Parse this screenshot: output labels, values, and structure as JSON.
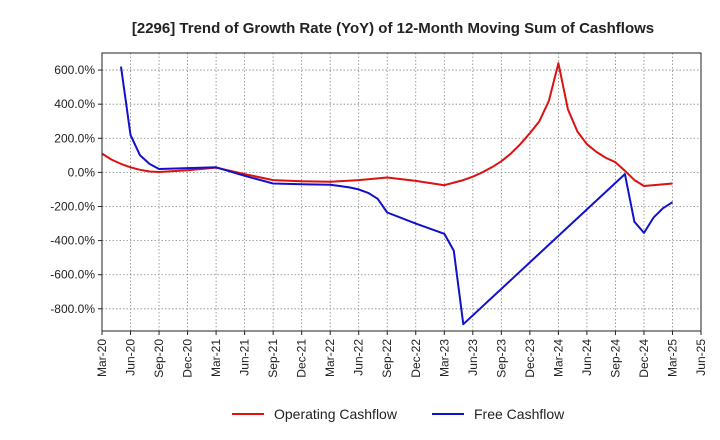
{
  "chart_data": {
    "type": "line",
    "title": "[2296]  Trend of Growth Rate (YoY) of 12-Month Moving Sum of Cashflows",
    "xlabel": "",
    "ylabel": "",
    "ylim": [
      -930,
      700
    ],
    "y_ticks": [
      600,
      400,
      200,
      0,
      -200,
      -400,
      -600,
      -800
    ],
    "y_tick_labels": [
      "600.0%",
      "400.0%",
      "200.0%",
      "0.0%",
      "-200.0%",
      "-400.0%",
      "-600.0%",
      "-800.0%"
    ],
    "x_tick_labels": [
      "Mar-20",
      "Jun-20",
      "Sep-20",
      "Dec-20",
      "Mar-21",
      "Jun-21",
      "Sep-21",
      "Dec-21",
      "Mar-22",
      "Jun-22",
      "Sep-22",
      "Dec-22",
      "Mar-23",
      "Jun-23",
      "Sep-23",
      "Dec-23",
      "Mar-24",
      "Jun-24",
      "Sep-24",
      "Dec-24",
      "Mar-25",
      "Jun-25"
    ],
    "grid": true,
    "legend_position": "bottom",
    "series": [
      {
        "name": "Operating Cashflow",
        "color": "#dd1111",
        "x": [
          "Mar-20",
          "Apr-20",
          "May-20",
          "Jun-20",
          "Jul-20",
          "Aug-20",
          "Sep-20",
          "Dec-20",
          "Mar-21",
          "Jun-21",
          "Sep-21",
          "Dec-21",
          "Mar-22",
          "Jun-22",
          "Sep-22",
          "Dec-22",
          "Mar-23",
          "Apr-23",
          "May-23",
          "Jun-23",
          "Jul-23",
          "Aug-23",
          "Sep-23",
          "Oct-23",
          "Nov-23",
          "Dec-23",
          "Jan-24",
          "Feb-24",
          "Mar-24",
          "Apr-24",
          "May-24",
          "Jun-24",
          "Jul-24",
          "Aug-24",
          "Sep-24",
          "Oct-24",
          "Nov-24",
          "Dec-24",
          "Mar-25"
        ],
        "values": [
          110,
          75,
          50,
          30,
          15,
          5,
          2,
          12,
          28,
          -10,
          -45,
          -52,
          -55,
          -45,
          -30,
          -50,
          -75,
          -60,
          -45,
          -25,
          0,
          30,
          65,
          110,
          165,
          230,
          300,
          420,
          640,
          370,
          240,
          165,
          120,
          85,
          60,
          10,
          -45,
          -80,
          -65
        ]
      },
      {
        "name": "Free Cashflow",
        "color": "#1111cc",
        "x": [
          "May-20",
          "Jun-20",
          "Jul-20",
          "Aug-20",
          "Sep-20",
          "Dec-20",
          "Mar-21",
          "Jun-21",
          "Sep-21",
          "Dec-21",
          "Mar-22",
          "Apr-22",
          "May-22",
          "Jun-22",
          "Jul-22",
          "Aug-22",
          "Sep-22",
          "Dec-22",
          "Mar-23",
          "Apr-23",
          "May-23",
          "Oct-24",
          "Nov-24",
          "Dec-24",
          "Jan-25",
          "Feb-25",
          "Mar-25"
        ],
        "values": [
          620,
          220,
          100,
          50,
          20,
          25,
          30,
          -20,
          -65,
          -70,
          -72,
          -80,
          -88,
          -100,
          -120,
          -155,
          -235,
          -300,
          -360,
          -460,
          -890,
          -10,
          -290,
          -355,
          -265,
          -210,
          -175
        ]
      }
    ]
  }
}
